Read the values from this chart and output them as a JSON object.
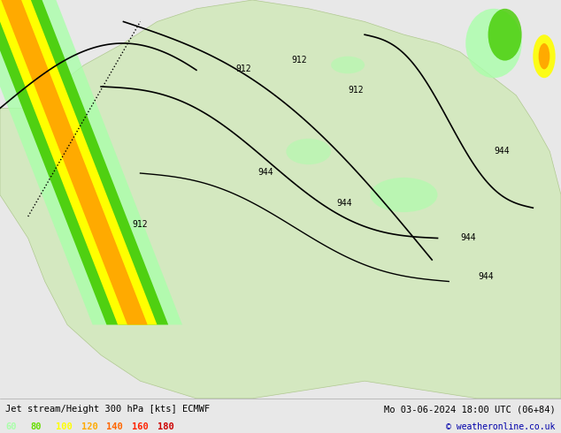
{
  "title_left": "Jet stream/Height 300 hPa [kts] ECMWF",
  "title_right": "Mo 03-06-2024 18:00 UTC (06+84)",
  "copyright": "© weatheronline.co.uk",
  "legend_values": [
    60,
    80,
    100,
    120,
    140,
    160,
    180
  ],
  "legend_colors": [
    "#aaffaa",
    "#66dd00",
    "#ffff00",
    "#ffaa00",
    "#ff6600",
    "#ff2200",
    "#cc0000"
  ],
  "bg_color": "#e8e8e8",
  "map_bg": "#e0e8d0",
  "fig_width": 6.34,
  "fig_height": 4.9,
  "dpi": 100
}
